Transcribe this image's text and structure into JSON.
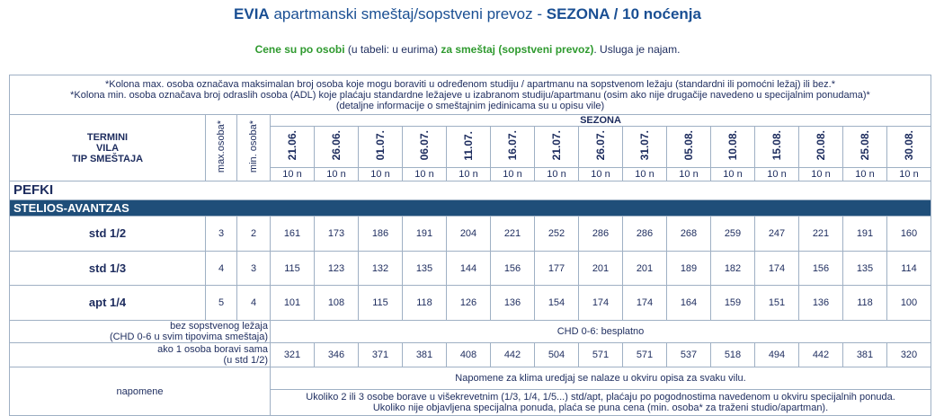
{
  "header": {
    "title": {
      "destination": "EVIA",
      "description": "apartmanski smeštaj/sopstveni prevoz -",
      "season": "SEZONA / 10 noćenja"
    },
    "subtitle": {
      "part1": "Cene su po osobi",
      "part2": "(u tabeli: u eurima)",
      "part3": "za smeštaj (sopstveni prevoz)",
      "part4": ". Usluga je najam."
    }
  },
  "table": {
    "notes": [
      "*Kolona max. osoba označava maksimalan broj osoba koje mogu boraviti u određenom studiju / apartmanu na sopstvenom ležaju (standardni ili pomoćni ležaj) ili bez.*",
      "*Kolona min. osoba označava broj odraslih osoba (ADL) koje plaćaju standardne ležajeve u izabranom studiju/apartmanu (osim ako nije drugačije navedeno u specijalnim ponudama)*",
      "(detaljne informacije o smeštajnim jedinicama su u opisu vile)"
    ],
    "column_headers": {
      "labels": [
        "TERMINI",
        "VILA",
        "TIP SMEŠTAJA"
      ],
      "max": "max.osoba*",
      "min": "min. osoba*",
      "season": "SEZONA",
      "dates": [
        "21.06.",
        "26.06.",
        "01.07.",
        "06.07.",
        "11.07.",
        "16.07.",
        "21.07.",
        "26.07.",
        "31.07.",
        "05.08.",
        "10.08.",
        "15.08.",
        "20.08.",
        "25.08.",
        "30.08."
      ],
      "nights": [
        "10 n",
        "10 n",
        "10 n",
        "10 n",
        "10 n",
        "10 n",
        "10 n",
        "10 n",
        "10 n",
        "10 n",
        "10 n",
        "10 n",
        "10 n",
        "10 n",
        "10 n"
      ]
    },
    "region": "PEFKI",
    "villa": "STELIOS-AVANTZAS",
    "rows": [
      {
        "type": "std 1/2",
        "max": 3,
        "min": 2,
        "prices": [
          161,
          173,
          186,
          191,
          204,
          221,
          252,
          286,
          286,
          268,
          259,
          247,
          221,
          191,
          160
        ]
      },
      {
        "type": "std 1/3",
        "max": 4,
        "min": 3,
        "prices": [
          115,
          123,
          132,
          135,
          144,
          156,
          177,
          201,
          201,
          189,
          182,
          174,
          156,
          135,
          114
        ]
      },
      {
        "type": "apt 1/4",
        "max": 5,
        "min": 4,
        "prices": [
          101,
          108,
          115,
          118,
          126,
          136,
          154,
          174,
          174,
          164,
          159,
          151,
          136,
          118,
          100
        ]
      }
    ],
    "extra_bed": {
      "label": [
        "bez sopstvenog ležaja",
        "(CHD 0-6 u svim tipovima smeštaja)"
      ],
      "note": "CHD 0-6: besplatno"
    },
    "single": {
      "label": [
        "ako 1 osoba boravi sama",
        "(u std 1/2)"
      ],
      "prices": [
        321,
        346,
        371,
        381,
        408,
        442,
        504,
        571,
        571,
        537,
        518,
        494,
        442,
        381,
        320
      ]
    },
    "remarks": {
      "label": "napomene",
      "ac_note": "Napomene za klima uredjaj se nalaze u okviru opisa za svaku vilu.",
      "special_offer": [
        "Ukoliko 2 ili 3 osobe borave u višekrevetnim (1/3, 1/4, 1/5...) std/apt, plaćaju po pogodnostima navedenom u okviru specijalnih ponuda.",
        "Ukoliko nije objavljena specijalna ponuda, plaća se puna cena (min. osoba* za traženi studio/apartman)."
      ]
    }
  }
}
